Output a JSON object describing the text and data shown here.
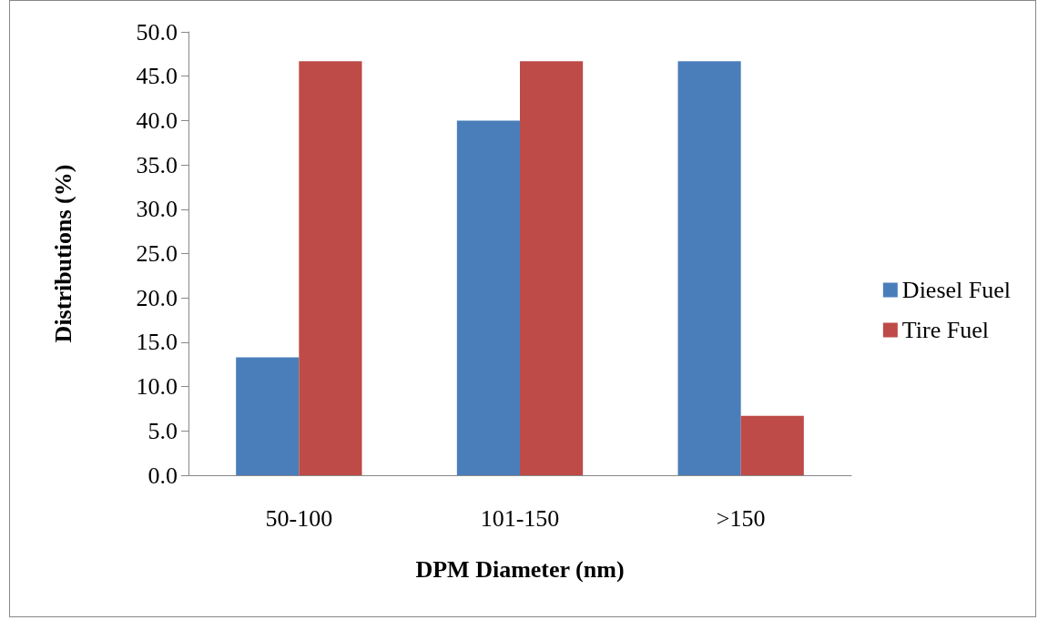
{
  "chart_data": {
    "type": "bar",
    "xlabel": "DPM Diameter (nm)",
    "ylabel": "Distributions (%)",
    "categories": [
      "50-100",
      "101-150",
      ">150"
    ],
    "series": [
      {
        "name": "Diesel Fuel",
        "color": "#4a7ebb",
        "values": [
          13.3,
          40.0,
          46.7
        ]
      },
      {
        "name": "Tire Fuel",
        "color": "#be4b48",
        "values": [
          46.7,
          46.7,
          6.7
        ]
      }
    ],
    "ylim": [
      0,
      50
    ],
    "yticks": [
      {
        "value": 0,
        "label": "0.0"
      },
      {
        "value": 5,
        "label": "5.0"
      },
      {
        "value": 10,
        "label": "10.0"
      },
      {
        "value": 15,
        "label": "15.0"
      },
      {
        "value": 20,
        "label": "20.0"
      },
      {
        "value": 25,
        "label": "25.0"
      },
      {
        "value": 30,
        "label": "30.0"
      },
      {
        "value": 35,
        "label": "35.0"
      },
      {
        "value": 40,
        "label": "40.0"
      },
      {
        "value": 45,
        "label": "45.0"
      },
      {
        "value": 50,
        "label": "50.0"
      }
    ],
    "grid": false,
    "legend": "right"
  }
}
